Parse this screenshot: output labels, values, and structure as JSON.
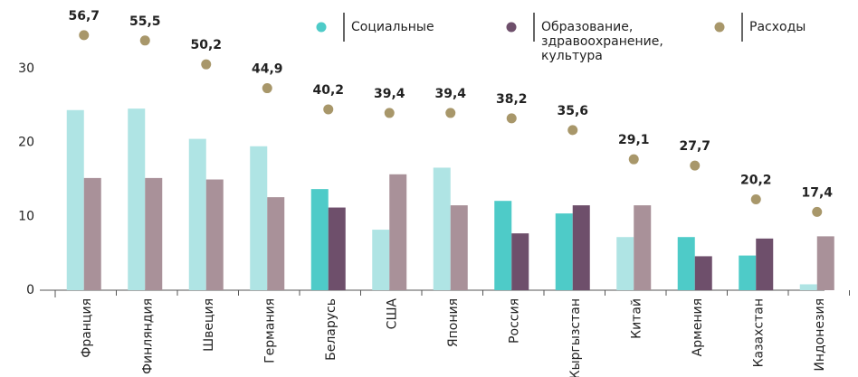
{
  "chart_data": {
    "type": "bar",
    "categories": [
      "Франция",
      "Финляндия",
      "Швеция",
      "Германия",
      "Беларусь",
      "США",
      "Япония",
      "Россия",
      "Кыргызстан",
      "Китай",
      "Армения",
      "Казахстан",
      "Индонезия"
    ],
    "highlighted": [
      "Беларусь",
      "Россия",
      "Кыргызстан",
      "Армения",
      "Казахстан"
    ],
    "series": [
      {
        "name": "Социальные",
        "color": "#4ecbc8",
        "faded_color": "#afe4e4",
        "values": [
          24.4,
          24.6,
          20.5,
          19.5,
          13.7,
          8.2,
          16.6,
          12.1,
          10.4,
          7.2,
          7.2,
          4.7,
          0.8
        ]
      },
      {
        "name": "Образование, здравоохранение, культура",
        "color": "#6e4f6b",
        "faded_color": "#a99199",
        "values": [
          15.2,
          15.2,
          15.0,
          12.6,
          11.2,
          15.7,
          11.5,
          7.7,
          11.5,
          11.5,
          4.6,
          7.0,
          7.3
        ]
      },
      {
        "name": "Расходы",
        "color": "#a8976a",
        "axis": "y2",
        "kind": "dot",
        "values": [
          56.7,
          55.5,
          50.2,
          44.9,
          40.2,
          39.4,
          39.4,
          38.2,
          35.6,
          29.1,
          27.7,
          20.2,
          17.4
        ],
        "value_labels": [
          "56,7",
          "55,5",
          "50,2",
          "44,9",
          "40,2",
          "39,4",
          "39,4",
          "38,2",
          "35,6",
          "29,1",
          "27,7",
          "20,2",
          "17,4"
        ]
      }
    ],
    "ylim": [
      0,
      38.7
    ],
    "yticks": [
      0,
      10,
      20,
      30
    ],
    "y2lim": [
      0,
      63.5
    ]
  }
}
